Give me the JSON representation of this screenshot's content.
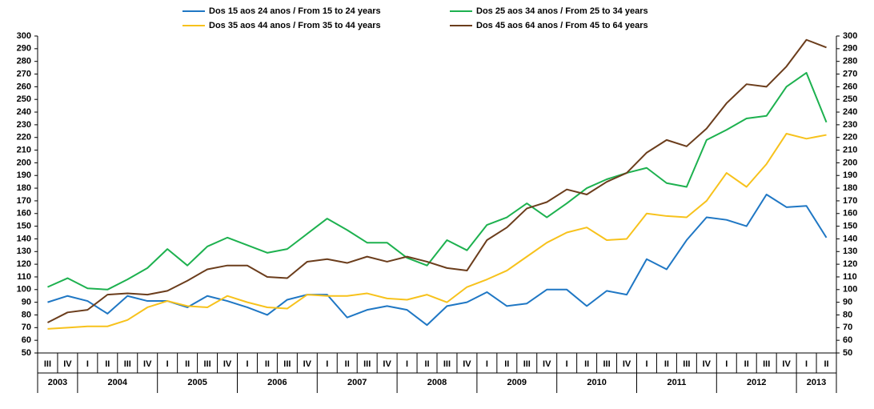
{
  "chart_data": {
    "type": "line",
    "category_groups": [
      {
        "label": "2003",
        "categories": [
          "III",
          "IV"
        ]
      },
      {
        "label": "2004",
        "categories": [
          "I",
          "II",
          "III",
          "IV"
        ]
      },
      {
        "label": "2005",
        "categories": [
          "I",
          "II",
          "III",
          "IV"
        ]
      },
      {
        "label": "2006",
        "categories": [
          "I",
          "II",
          "III",
          "IV"
        ]
      },
      {
        "label": "2007",
        "categories": [
          "I",
          "II",
          "III",
          "IV"
        ]
      },
      {
        "label": "2008",
        "categories": [
          "I",
          "II",
          "III",
          "IV"
        ]
      },
      {
        "label": "2009",
        "categories": [
          "I",
          "II",
          "III",
          "IV"
        ]
      },
      {
        "label": "2010",
        "categories": [
          "I",
          "II",
          "III",
          "IV"
        ]
      },
      {
        "label": "2011",
        "categories": [
          "I",
          "II",
          "III",
          "IV"
        ]
      },
      {
        "label": "2012",
        "categories": [
          "I",
          "II",
          "III",
          "IV"
        ]
      },
      {
        "label": "2013",
        "categories": [
          "I",
          "II"
        ]
      }
    ],
    "series": [
      {
        "name": "Dos 15 aos 24 anos / From 15 to 24 years",
        "color": "#1f77c4",
        "values": [
          90,
          95,
          91,
          81,
          95,
          91,
          91,
          86,
          95,
          91,
          86,
          80,
          92,
          96,
          96,
          78,
          84,
          87,
          84,
          72,
          87,
          90,
          98,
          87,
          89,
          100,
          100,
          87,
          99,
          96,
          124,
          116,
          139,
          157,
          155,
          150,
          175,
          165,
          166,
          141
        ]
      },
      {
        "name": "Dos 25 aos 34 anos / From 25 to 34 years",
        "color": "#1db14f",
        "values": [
          102,
          109,
          101,
          100,
          108,
          117,
          132,
          119,
          134,
          141,
          135,
          129,
          132,
          144,
          156,
          147,
          137,
          137,
          125,
          119,
          139,
          131,
          151,
          157,
          168,
          157,
          168,
          180,
          187,
          192,
          196,
          184,
          181,
          218,
          226,
          235,
          237,
          260,
          271,
          232
        ]
      },
      {
        "name": "Dos 35 aos 44 anos / From 35 to 44 years",
        "color": "#f7c21c",
        "values": [
          69,
          70,
          71,
          71,
          76,
          86,
          91,
          87,
          86,
          95,
          90,
          86,
          85,
          96,
          95,
          95,
          97,
          93,
          92,
          96,
          90,
          102,
          108,
          115,
          126,
          137,
          145,
          149,
          139,
          140,
          160,
          158,
          157,
          170,
          192,
          181,
          199,
          223,
          219,
          222
        ]
      },
      {
        "name": "Dos 45 aos 64 anos / From 45 to 64 years",
        "color": "#6b3d1c",
        "values": [
          74,
          82,
          84,
          96,
          97,
          96,
          99,
          107,
          116,
          119,
          119,
          110,
          109,
          122,
          124,
          121,
          126,
          122,
          126,
          122,
          117,
          115,
          139,
          149,
          164,
          169,
          179,
          175,
          185,
          192,
          208,
          218,
          213,
          227,
          247,
          262,
          260,
          276,
          297,
          291
        ]
      }
    ],
    "ylim": [
      50,
      300
    ],
    "yticks": [
      50,
      60,
      70,
      80,
      90,
      100,
      110,
      120,
      130,
      140,
      150,
      160,
      170,
      180,
      190,
      200,
      210,
      220,
      230,
      240,
      250,
      260,
      270,
      280,
      290,
      300
    ],
    "y2lim": [
      50,
      300
    ],
    "y2ticks": [
      50,
      60,
      70,
      80,
      90,
      100,
      110,
      120,
      130,
      140,
      150,
      160,
      170,
      180,
      190,
      200,
      210,
      220,
      230,
      240,
      250,
      260,
      270,
      280,
      290,
      300
    ],
    "grid": false
  }
}
